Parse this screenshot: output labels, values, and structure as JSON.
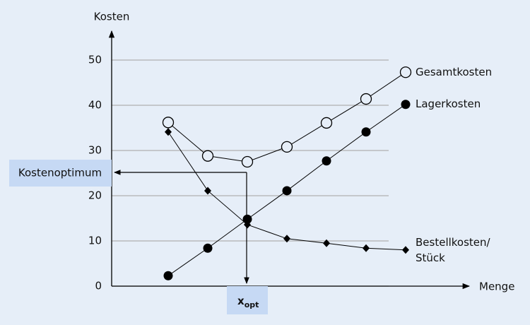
{
  "chart_data": {
    "type": "line",
    "y_axis_label": "Kosten",
    "x_axis_label": "Menge",
    "categories": [
      null,
      null,
      null,
      null,
      null,
      null,
      null
    ],
    "series": [
      {
        "name": "Gesamtkosten",
        "color": "#000000",
        "marker": "open-circle",
        "values": [
          36.2,
          28.8,
          27.5,
          30.8,
          36.1,
          41.4,
          47.3
        ]
      },
      {
        "name": "Lagerkosten",
        "color": "#000000",
        "marker": "circle",
        "values": [
          2.3,
          8.4,
          14.8,
          21.1,
          27.7,
          34.1,
          40.2
        ]
      },
      {
        "name": "Bestellkosten/ Stück",
        "color": "#000000",
        "marker": "diamond",
        "values": [
          34.1,
          21.1,
          13.6,
          10.5,
          9.5,
          8.4,
          8.0
        ]
      }
    ],
    "ylim": [
      0,
      56
    ],
    "yticks": [
      0,
      10,
      20,
      30,
      40,
      50
    ],
    "grid": true,
    "annotations": {
      "optimum_cost": "Kostenoptimum",
      "optimum_quantity": "x",
      "optimum_quantity_subscript": "opt"
    }
  }
}
